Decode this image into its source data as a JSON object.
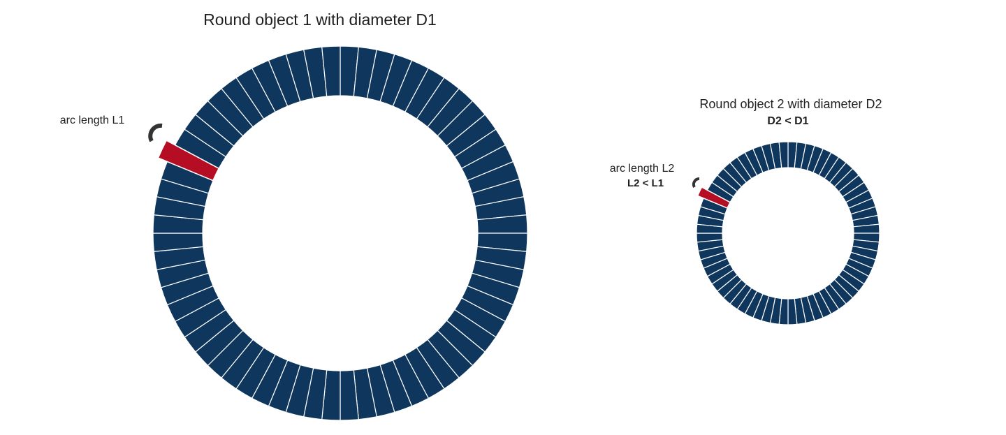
{
  "object1": {
    "title": "Round object 1 with diameter D1",
    "arc_label": "arc length L1",
    "segment_count": 64
  },
  "object2": {
    "title": "Round object 2 with diameter D2",
    "comparison_label": "D2 < D1",
    "arc_label": "arc length L2",
    "arc_comparison_label": "L2 < L1",
    "segment_count": 64
  },
  "colors": {
    "ring_fill": "#0f365c",
    "segment_divider": "#ffffff",
    "highlight_segment": "#b50d23",
    "arc_icon": "#333333"
  }
}
